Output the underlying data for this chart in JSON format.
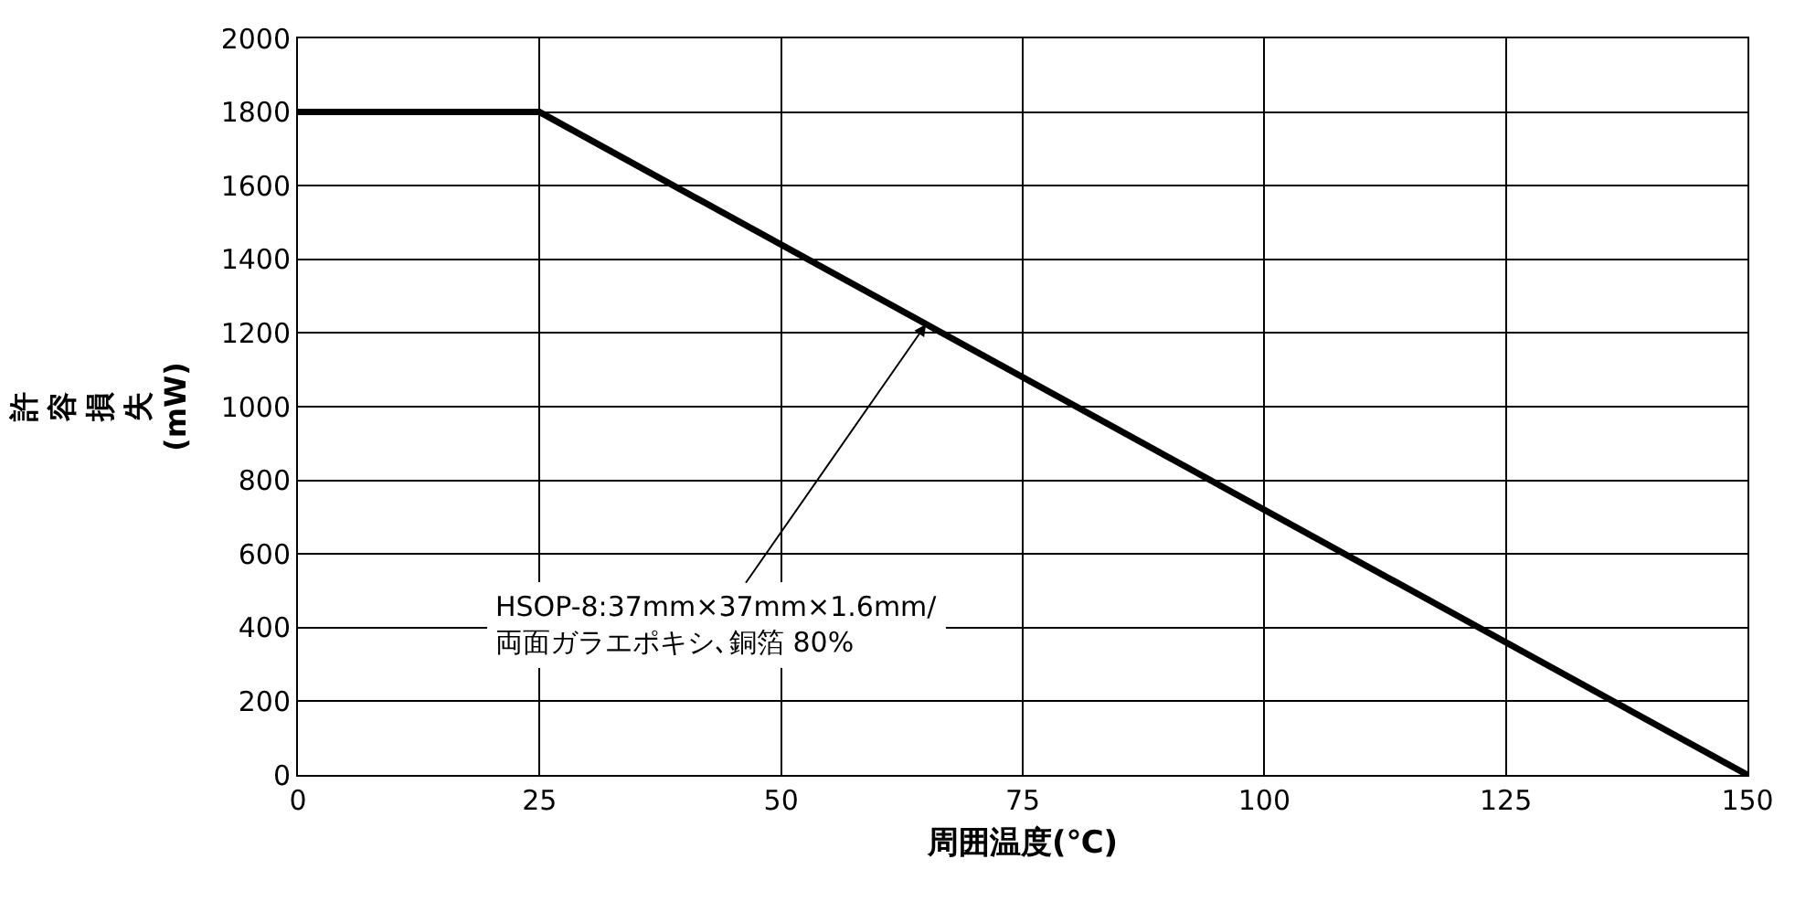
{
  "chart_data": {
    "type": "line",
    "xlabel": "周囲温度(℃)",
    "ylabel": "許容損失\n(mW)",
    "x": [
      0,
      25,
      150
    ],
    "series": [
      {
        "color": "#000000",
        "values": [
          1800,
          1800,
          0
        ]
      }
    ],
    "xlim": [
      0,
      150
    ],
    "xticks": [
      0,
      25,
      50,
      75,
      100,
      125,
      150
    ],
    "ylim": [
      0,
      2000
    ],
    "yticks": [
      0,
      200,
      400,
      600,
      800,
      1000,
      1200,
      1400,
      1600,
      1800,
      2000
    ],
    "grid": true,
    "legend": false,
    "marker": "none",
    "line_style": "solid",
    "annotations": [
      {
        "text": "HSOP-8:37mm×37mm×1.6mm/\n両面ガラエポキシ､銅箔 80%",
        "x": 65,
        "y": 1224
      }
    ]
  }
}
